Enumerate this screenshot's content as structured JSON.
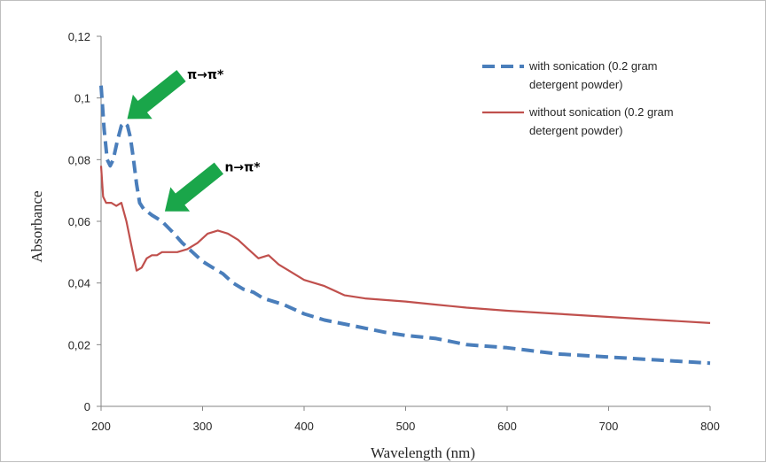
{
  "chart_data": {
    "type": "line",
    "xlabel": "Wavelength (nm)",
    "ylabel": "Absorbance",
    "xlim": [
      200,
      800
    ],
    "ylim": [
      0,
      0.12
    ],
    "x_ticks": [
      "200",
      "300",
      "400",
      "500",
      "600",
      "700",
      "800"
    ],
    "y_ticks": [
      "0",
      "0,02",
      "0,04",
      "0,06",
      "0,08",
      "0,1",
      "0,12"
    ],
    "grid": false,
    "legend_position": "top-right",
    "series": [
      {
        "name_line1": "with sonication (0.2 gram",
        "name_line2": "detergent powder)",
        "color": "#4a7ebb",
        "style": "dashed",
        "points": [
          [
            200,
            0.104
          ],
          [
            203,
            0.09
          ],
          [
            206,
            0.08
          ],
          [
            209,
            0.078
          ],
          [
            212,
            0.08
          ],
          [
            216,
            0.086
          ],
          [
            220,
            0.091
          ],
          [
            223,
            0.092
          ],
          [
            226,
            0.091
          ],
          [
            229,
            0.087
          ],
          [
            232,
            0.08
          ],
          [
            235,
            0.072
          ],
          [
            238,
            0.066
          ],
          [
            242,
            0.064
          ],
          [
            246,
            0.063
          ],
          [
            250,
            0.062
          ],
          [
            255,
            0.061
          ],
          [
            260,
            0.06
          ],
          [
            266,
            0.058
          ],
          [
            272,
            0.056
          ],
          [
            280,
            0.053
          ],
          [
            290,
            0.05
          ],
          [
            300,
            0.047
          ],
          [
            310,
            0.045
          ],
          [
            320,
            0.043
          ],
          [
            330,
            0.04
          ],
          [
            340,
            0.038
          ],
          [
            350,
            0.037
          ],
          [
            360,
            0.035
          ],
          [
            380,
            0.033
          ],
          [
            400,
            0.03
          ],
          [
            420,
            0.028
          ],
          [
            450,
            0.026
          ],
          [
            480,
            0.024
          ],
          [
            500,
            0.023
          ],
          [
            530,
            0.022
          ],
          [
            560,
            0.02
          ],
          [
            600,
            0.019
          ],
          [
            650,
            0.017
          ],
          [
            700,
            0.016
          ],
          [
            750,
            0.015
          ],
          [
            800,
            0.014
          ]
        ]
      },
      {
        "name_line1": "without sonication (0.2 gram",
        "name_line2": "detergent powder)",
        "color": "#c0504d",
        "style": "solid",
        "points": [
          [
            200,
            0.078
          ],
          [
            202,
            0.068
          ],
          [
            205,
            0.066
          ],
          [
            210,
            0.066
          ],
          [
            215,
            0.065
          ],
          [
            220,
            0.066
          ],
          [
            225,
            0.06
          ],
          [
            230,
            0.052
          ],
          [
            235,
            0.044
          ],
          [
            240,
            0.045
          ],
          [
            245,
            0.048
          ],
          [
            250,
            0.049
          ],
          [
            255,
            0.049
          ],
          [
            260,
            0.05
          ],
          [
            265,
            0.05
          ],
          [
            275,
            0.05
          ],
          [
            285,
            0.051
          ],
          [
            295,
            0.053
          ],
          [
            305,
            0.056
          ],
          [
            315,
            0.057
          ],
          [
            325,
            0.056
          ],
          [
            335,
            0.054
          ],
          [
            345,
            0.051
          ],
          [
            355,
            0.048
          ],
          [
            365,
            0.049
          ],
          [
            375,
            0.046
          ],
          [
            385,
            0.044
          ],
          [
            400,
            0.041
          ],
          [
            420,
            0.039
          ],
          [
            440,
            0.036
          ],
          [
            460,
            0.035
          ],
          [
            500,
            0.034
          ],
          [
            530,
            0.033
          ],
          [
            560,
            0.032
          ],
          [
            600,
            0.031
          ],
          [
            650,
            0.03
          ],
          [
            700,
            0.029
          ],
          [
            750,
            0.028
          ],
          [
            800,
            0.027
          ]
        ]
      }
    ],
    "annotations": [
      {
        "label": "π→π*",
        "arrow_tip": [
          225,
          0.093
        ],
        "color": "#1aa64a"
      },
      {
        "label": "n→π*",
        "arrow_tip": [
          262,
          0.063
        ],
        "color": "#1aa64a"
      }
    ]
  }
}
